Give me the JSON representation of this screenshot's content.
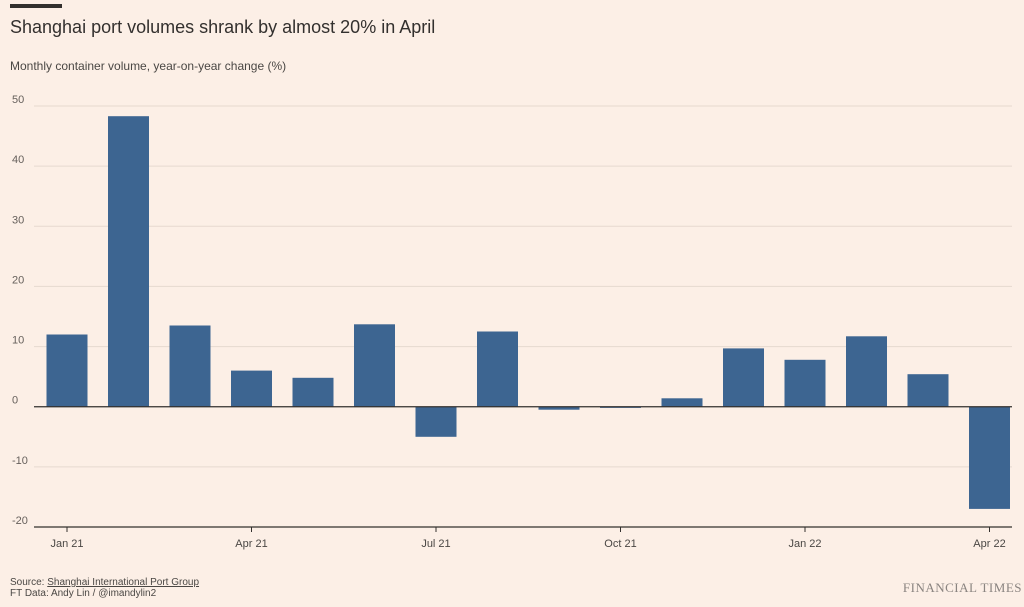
{
  "header": {
    "title": "Shanghai port volumes shrank by almost 20% in April",
    "subtitle": "Monthly container volume, year-on-year change (%)"
  },
  "footer": {
    "source_prefix": "Source: ",
    "source_name": "Shanghai International Port Group",
    "credit": "FT Data: Andy Lin / @imandylin2",
    "brand": "FINANCIAL TIMES"
  },
  "colors": {
    "background": "#fcefe6",
    "bar": "#3d6591",
    "grid": "#e6d9cf",
    "axis": "#33302e",
    "text": "#33302e"
  },
  "chart_data": {
    "type": "bar",
    "title": "Shanghai port volumes shrank by almost 20% in April",
    "subtitle": "Monthly container volume, year-on-year change (%)",
    "xlabel": "",
    "ylabel": "",
    "categories": [
      "Jan 21",
      "Feb 21",
      "Mar 21",
      "Apr 21",
      "May 21",
      "Jun 21",
      "Jul 21",
      "Aug 21",
      "Sep 21",
      "Oct 21",
      "Nov 21",
      "Dec 21",
      "Jan 22",
      "Feb 22",
      "Mar 22",
      "Apr 22"
    ],
    "values": [
      12,
      48.3,
      13.5,
      6,
      4.8,
      13.7,
      -5,
      12.5,
      -0.5,
      -0.2,
      1.4,
      9.7,
      7.8,
      11.7,
      5.4,
      -17
    ],
    "ylim": [
      -20,
      50
    ],
    "yticks": [
      -20,
      -10,
      0,
      10,
      20,
      30,
      40,
      50
    ],
    "xtick_labels": [
      "Jan 21",
      "Apr 21",
      "Jul 21",
      "Oct 21",
      "Jan 22",
      "Apr 22"
    ],
    "grid": true,
    "legend": "none"
  }
}
